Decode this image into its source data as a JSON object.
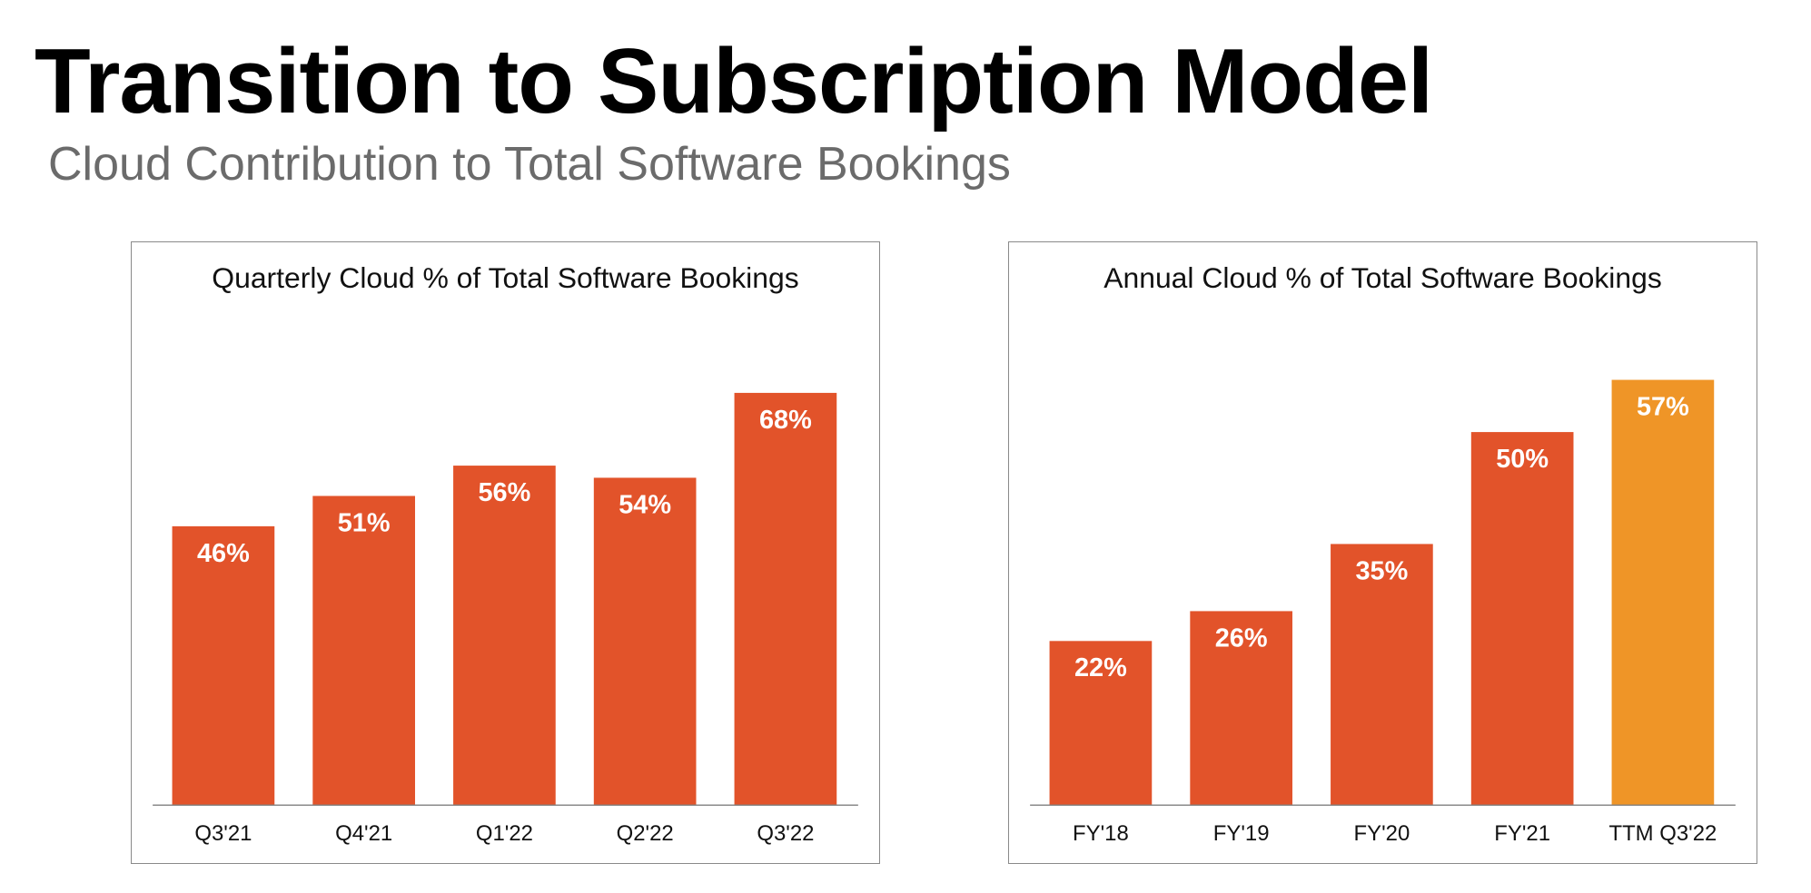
{
  "page": {
    "title": "Transition to Subscription Model",
    "subtitle": "Cloud Contribution to Total Software Bookings"
  },
  "colors": {
    "bar_primary": "#e2532a",
    "bar_highlight": "#ef9527",
    "axis": "#7f7f7f",
    "subtitle": "#6b6b6b"
  },
  "chart_data": [
    {
      "type": "bar",
      "title": "Quarterly Cloud % of Total Software Bookings",
      "xlabel": "",
      "ylabel": "",
      "categories": [
        "Q3'21",
        "Q4'21",
        "Q1'22",
        "Q2'22",
        "Q3'22"
      ],
      "values": [
        46,
        51,
        56,
        54,
        68
      ],
      "data_labels": [
        "46%",
        "51%",
        "56%",
        "54%",
        "68%"
      ],
      "bar_colors": [
        "#e2532a",
        "#e2532a",
        "#e2532a",
        "#e2532a",
        "#e2532a"
      ],
      "ylim": [
        0,
        80
      ],
      "grid": false,
      "legend": "none"
    },
    {
      "type": "bar",
      "title": "Annual Cloud % of Total Software Bookings",
      "xlabel": "",
      "ylabel": "",
      "categories": [
        "FY'18",
        "FY'19",
        "FY'20",
        "FY'21",
        "TTM Q3'22"
      ],
      "values": [
        22,
        26,
        35,
        50,
        57
      ],
      "data_labels": [
        "22%",
        "26%",
        "35%",
        "50%",
        "57%"
      ],
      "bar_colors": [
        "#e2532a",
        "#e2532a",
        "#e2532a",
        "#e2532a",
        "#ef9527"
      ],
      "ylim": [
        0,
        65
      ],
      "grid": false,
      "legend": "none"
    }
  ]
}
